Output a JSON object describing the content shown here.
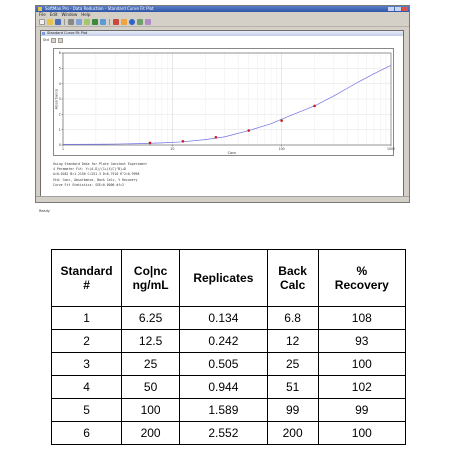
{
  "window": {
    "title": "SoftMax Pro - Data Reduction - Standard Curve Fit Plot"
  },
  "menu": [
    "File",
    "Edit",
    "Window",
    "Help"
  ],
  "toolbar_icons": [
    "new-icon",
    "open-icon",
    "save-icon",
    "print-icon",
    "copy-icon",
    "paste-icon",
    "chart-icon",
    "table-icon",
    "export-icon",
    "zoom-icon",
    "info-icon",
    "refresh-icon",
    "settings-icon"
  ],
  "plot_window": {
    "title": "Standard Curve Fit Plot",
    "view_label": "Std"
  },
  "chart_data": {
    "type": "scatter",
    "x_scale": "log",
    "xlim": [
      1,
      1000
    ],
    "ylim": [
      0,
      6
    ],
    "x_ticks": [
      "1",
      "10",
      "100",
      "1000"
    ],
    "y_ticks": [
      "0",
      "1",
      "2",
      "3",
      "4",
      "5",
      "6"
    ],
    "xlabel": "Conc",
    "ylabel": "Absorbance",
    "grid": true,
    "points": {
      "x": [
        6.25,
        12.5,
        25,
        50,
        100,
        200
      ],
      "y": [
        0.134,
        0.242,
        0.505,
        0.944,
        1.589,
        2.552
      ]
    },
    "fit_curve": {
      "x": [
        1,
        2,
        3,
        5,
        8,
        12,
        20,
        30,
        50,
        80,
        120,
        200,
        300,
        500,
        700,
        1000
      ],
      "y": [
        0.04,
        0.05,
        0.06,
        0.09,
        0.14,
        0.2,
        0.35,
        0.53,
        0.94,
        1.39,
        1.92,
        2.55,
        3.2,
        4.1,
        4.65,
        5.2
      ]
    },
    "point_color": "#cc1a1a",
    "curve_color": "#6f6fe8"
  },
  "info_text": [
    "Using Standard Data for Plate Constant Experiment",
    "4 Parameter Fit: Y=(A-D)/(1+(X/C)^B)+D",
    "A=0.0282 B=1.2150 C=251.3 D=6.7510 R^2=0.9998",
    "Std: Conc, Absorbance, Back Calc, % Recovery",
    "Curve Fit Statistics: SSE=0.0006 df=2"
  ],
  "statusbar": "Ready",
  "table": {
    "headers": [
      [
        "Standard",
        "#"
      ],
      [
        "Co|nc",
        "ng/mL"
      ],
      [
        "Replicates"
      ],
      [
        "Back",
        "Calc"
      ],
      [
        "%",
        "Recovery"
      ]
    ],
    "rows": [
      [
        "1",
        "6.25",
        "0.134",
        "6.8",
        "108"
      ],
      [
        "2",
        "12.5",
        "0.242",
        "12",
        "93"
      ],
      [
        "3",
        "25",
        "0.505",
        "25",
        "100"
      ],
      [
        "4",
        "50",
        "0.944",
        "51",
        "102"
      ],
      [
        "5",
        "100",
        "1.589",
        "99",
        "99"
      ],
      [
        "6",
        "200",
        "2.552",
        "200",
        "100"
      ]
    ]
  }
}
